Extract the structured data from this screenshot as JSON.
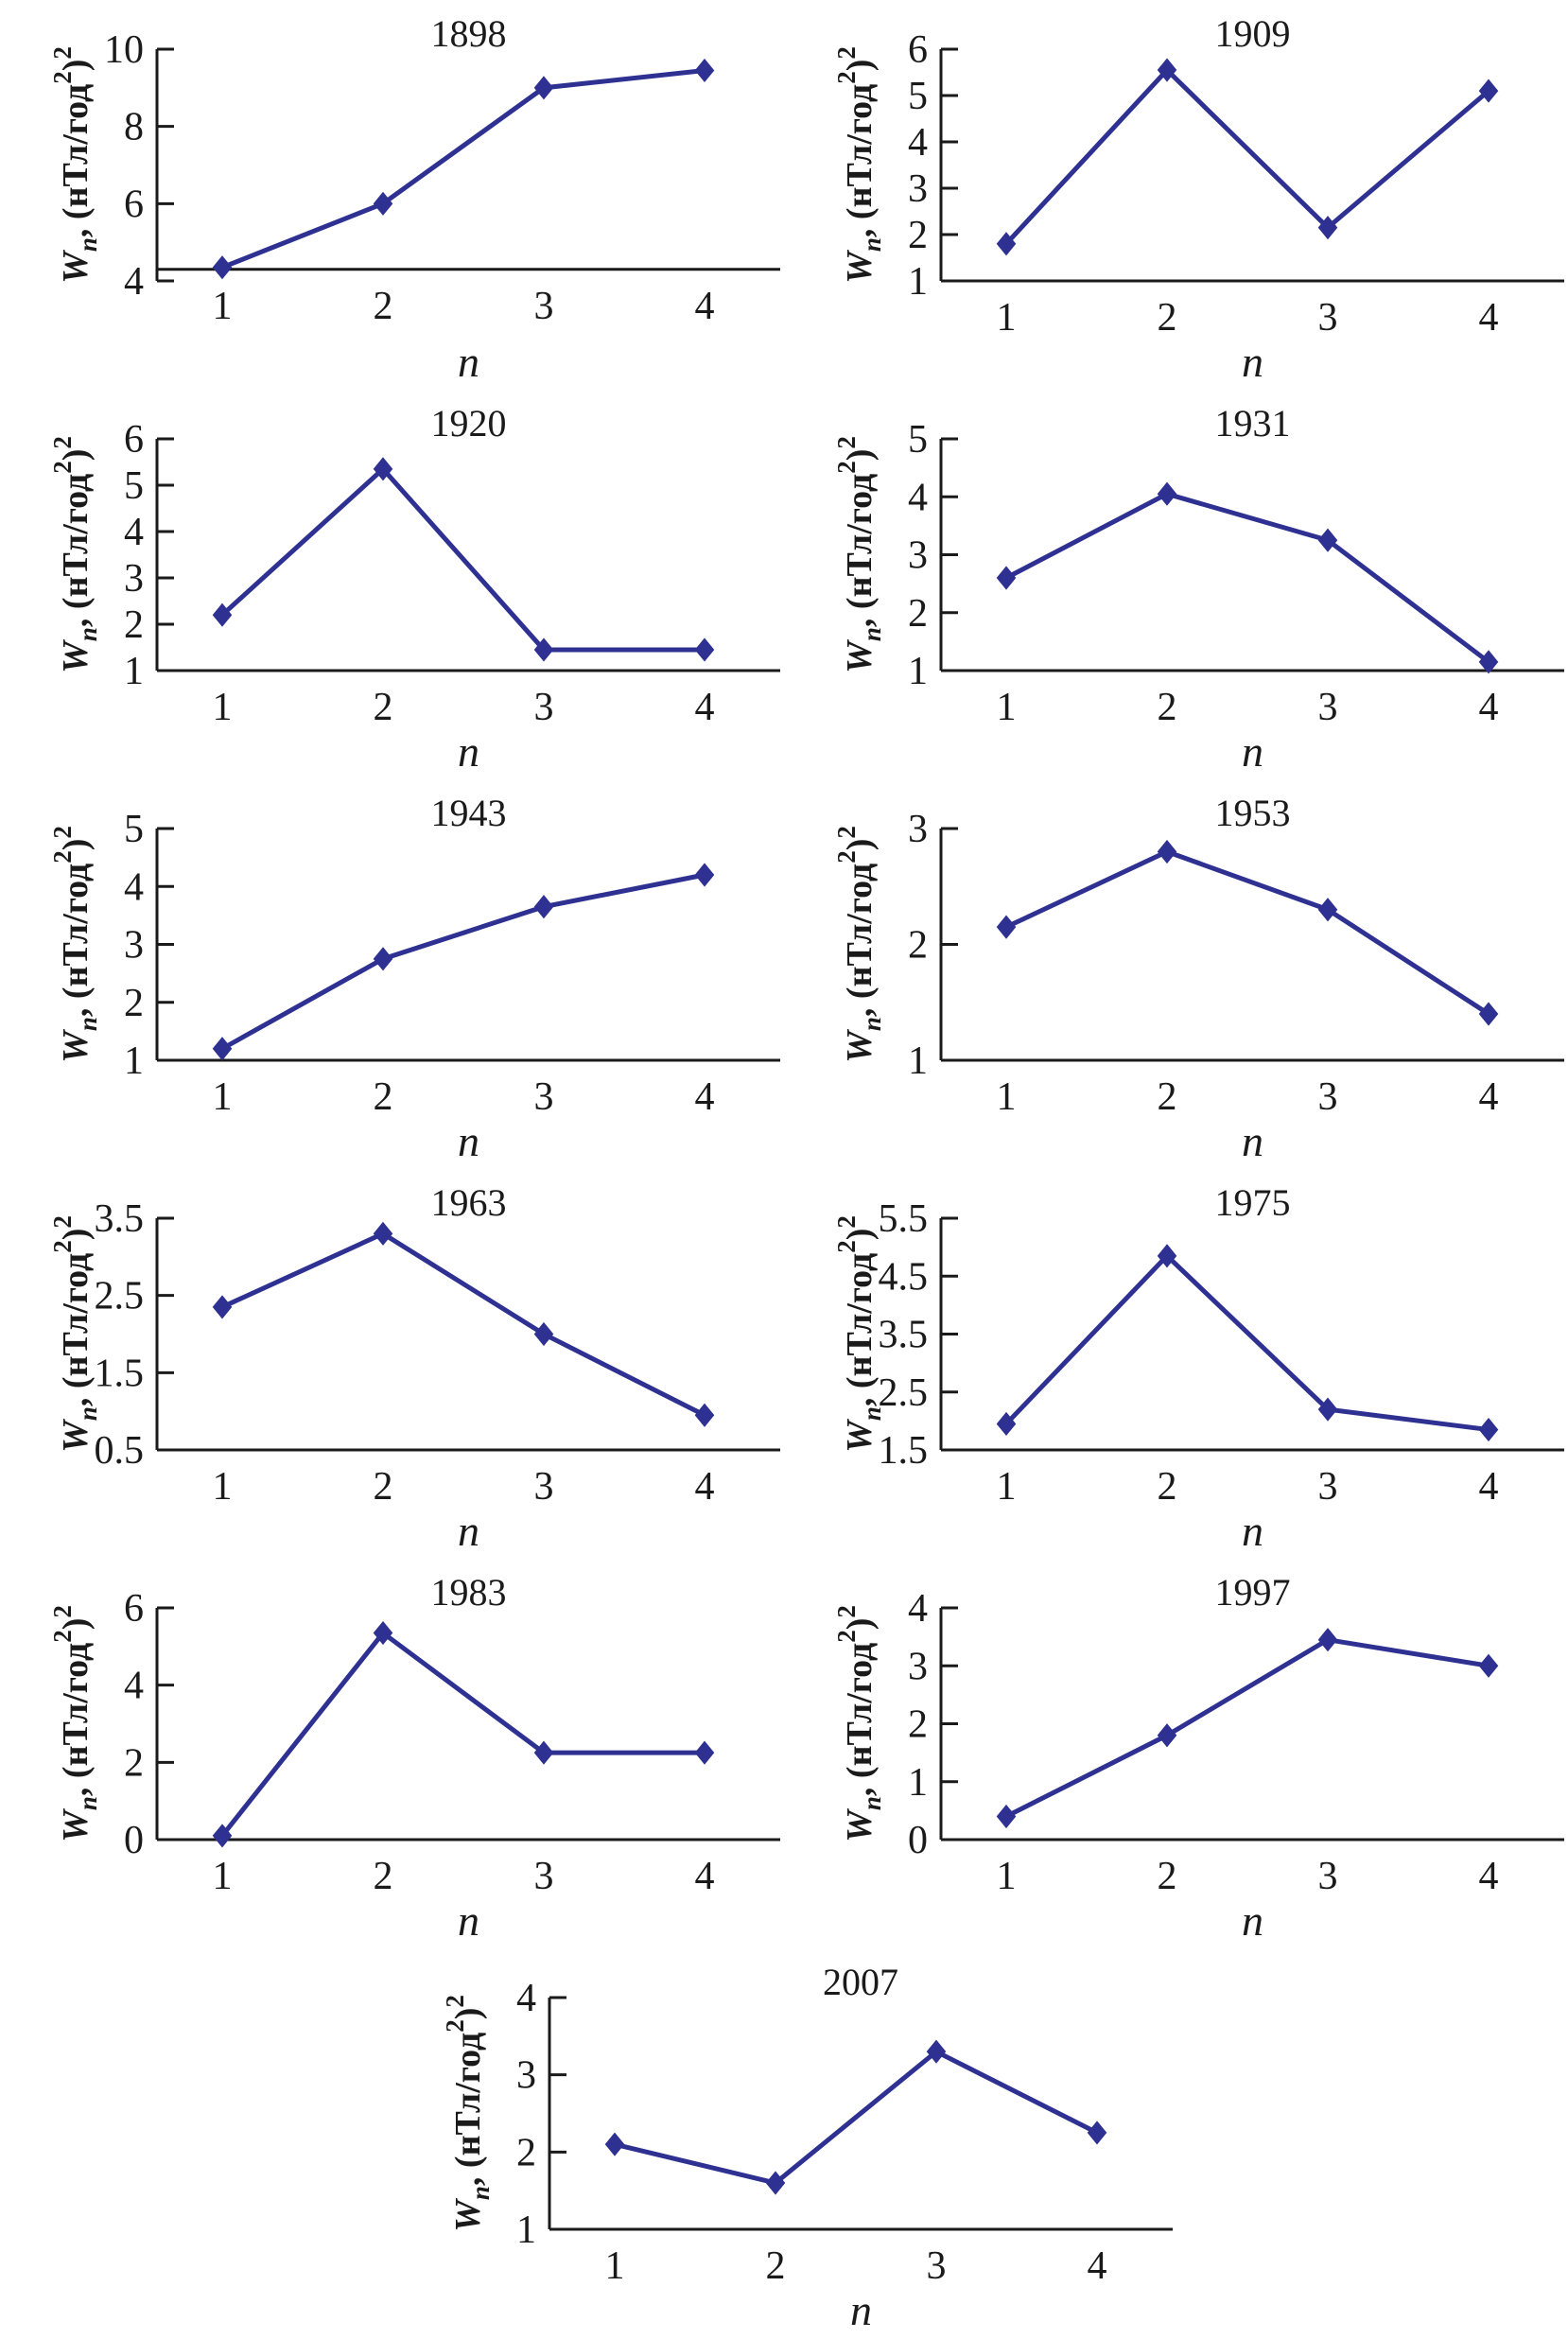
{
  "figure": {
    "accent_color": "#2e3192",
    "axis_color": "#1a1a1a",
    "xlabel": "n",
    "ylabel_segments": [
      {
        "text": "W",
        "style": "italic"
      },
      {
        "text": "n",
        "style": "sub-italic"
      },
      {
        "text": ", (нТл/год",
        "style": "normal"
      },
      {
        "text": "2",
        "style": "sup"
      },
      {
        "text": ")",
        "style": "normal"
      },
      {
        "text": "2",
        "style": "sup"
      }
    ]
  },
  "chart_data": [
    {
      "type": "line",
      "title": "1898",
      "xlabel": "n",
      "x": [
        1,
        2,
        3,
        4
      ],
      "values": [
        4.35,
        6.0,
        9.0,
        9.45
      ],
      "yticks": [
        4,
        6,
        8,
        10
      ],
      "ylim": [
        4,
        10
      ],
      "axis_cross_y": 4.3
    },
    {
      "type": "line",
      "title": "1909",
      "xlabel": "n",
      "x": [
        1,
        2,
        3,
        4
      ],
      "values": [
        1.8,
        5.55,
        2.15,
        5.1
      ],
      "yticks": [
        1,
        2,
        3,
        4,
        5,
        6
      ],
      "ylim": [
        1,
        6
      ]
    },
    {
      "type": "line",
      "title": "1920",
      "xlabel": "n",
      "x": [
        1,
        2,
        3,
        4
      ],
      "values": [
        2.2,
        5.35,
        1.45,
        1.45
      ],
      "yticks": [
        1,
        2,
        3,
        4,
        5,
        6
      ],
      "ylim": [
        1,
        6
      ]
    },
    {
      "type": "line",
      "title": "1931",
      "xlabel": "n",
      "x": [
        1,
        2,
        3,
        4
      ],
      "values": [
        2.6,
        4.05,
        3.25,
        1.15
      ],
      "yticks": [
        1,
        2,
        3,
        4,
        5
      ],
      "ylim": [
        1,
        5
      ]
    },
    {
      "type": "line",
      "title": "1943",
      "xlabel": "n",
      "x": [
        1,
        2,
        3,
        4
      ],
      "values": [
        1.2,
        2.75,
        3.65,
        4.2
      ],
      "yticks": [
        1,
        2,
        3,
        4,
        5
      ],
      "ylim": [
        1,
        5
      ]
    },
    {
      "type": "line",
      "title": "1953",
      "xlabel": "n",
      "x": [
        1,
        2,
        3,
        4
      ],
      "values": [
        2.15,
        2.8,
        2.3,
        1.4
      ],
      "yticks": [
        1,
        2,
        3
      ],
      "ylim": [
        1,
        3
      ]
    },
    {
      "type": "line",
      "title": "1963",
      "xlabel": "n",
      "x": [
        1,
        2,
        3,
        4
      ],
      "values": [
        2.35,
        3.3,
        2.0,
        0.95
      ],
      "yticks": [
        0.5,
        1.5,
        2.5,
        3.5
      ],
      "ylim": [
        0.5,
        3.5
      ]
    },
    {
      "type": "line",
      "title": "1975",
      "xlabel": "n",
      "x": [
        1,
        2,
        3,
        4
      ],
      "values": [
        1.95,
        4.85,
        2.2,
        1.85
      ],
      "yticks": [
        1.5,
        2.5,
        3.5,
        4.5,
        5.5
      ],
      "ylim": [
        1.5,
        5.5
      ]
    },
    {
      "type": "line",
      "title": "1983",
      "xlabel": "n",
      "x": [
        1,
        2,
        3,
        4
      ],
      "values": [
        0.1,
        5.35,
        2.25,
        2.25
      ],
      "yticks": [
        0,
        2,
        4,
        6
      ],
      "ylim": [
        0,
        6
      ]
    },
    {
      "type": "line",
      "title": "1997",
      "xlabel": "n",
      "x": [
        1,
        2,
        3,
        4
      ],
      "values": [
        0.4,
        1.8,
        3.45,
        3.0
      ],
      "yticks": [
        0,
        1,
        2,
        3,
        4
      ],
      "ylim": [
        0,
        4
      ]
    },
    {
      "type": "line",
      "title": "2007",
      "xlabel": "n",
      "x": [
        1,
        2,
        3,
        4
      ],
      "values": [
        2.1,
        1.6,
        3.3,
        2.25
      ],
      "yticks": [
        1,
        2,
        3,
        4
      ],
      "ylim": [
        1,
        4
      ]
    }
  ]
}
